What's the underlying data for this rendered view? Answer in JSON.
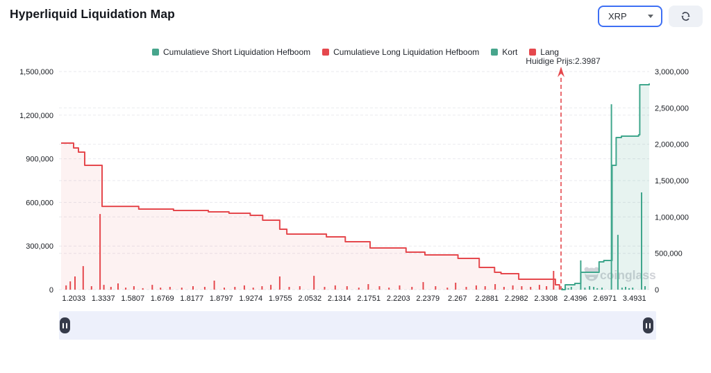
{
  "header": {
    "title": "Hyperliquid Liquidation Map"
  },
  "controls": {
    "symbol": "XRP",
    "symbol_caret_icon": "chevron-down",
    "refresh_icon": "refresh"
  },
  "watermark": {
    "text": "coinglass",
    "logo_icon": "coinglass-bear",
    "color": "#c9ccd2"
  },
  "slider": {
    "left_handle_icon": "pause",
    "right_handle_icon": "pause"
  },
  "chart_data": {
    "type": "area",
    "title": "Hyperliquid Liquidation Map",
    "grid": true,
    "legend_position": "top",
    "legend": [
      {
        "label": "Cumulatieve Short Liquidation Hefboom",
        "color": "#47a58c"
      },
      {
        "label": "Cumulatieve Long Liquidation Hefboom",
        "color": "#e5484d"
      },
      {
        "label": "Kort",
        "color": "#47a58c"
      },
      {
        "label": "Lang",
        "color": "#e5484d"
      }
    ],
    "colors": {
      "grid": "#e9eaee",
      "axis_text": "#16191f",
      "long": "#e5484d",
      "short": "#3fa68c",
      "long_fill": "rgba(229,72,77,0.07)",
      "short_fill": "rgba(71,165,140,0.13)",
      "price_line": "#e5484d",
      "annotation_text": "#2a2e35"
    },
    "x_tick_labels": [
      "1.2033",
      "1.3337",
      "1.5807",
      "1.6769",
      "1.8177",
      "1.8797",
      "1.9274",
      "1.9755",
      "2.0532",
      "2.1314",
      "2.1751",
      "2.2203",
      "2.2379",
      "2.267",
      "2.2881",
      "2.2982",
      "2.3308",
      "2.4396",
      "2.6971",
      "3.4931"
    ],
    "left_axis": {
      "min": 0,
      "max": 1500000,
      "tick_values": [
        0,
        300000,
        600000,
        900000,
        1200000,
        1500000
      ],
      "tick_labels": [
        "0",
        "300,000",
        "600,000",
        "900,000",
        "1,200,000",
        "1,500,000"
      ]
    },
    "right_axis": {
      "min": 0,
      "max": 3000000,
      "tick_values": [
        0,
        500000,
        1000000,
        1500000,
        2000000,
        2500000,
        3000000
      ],
      "tick_labels": [
        "0",
        "500,000",
        "1,000,000",
        "1,500,000",
        "2,000,000",
        "2,500,000",
        "3,000,000"
      ]
    },
    "current_price": {
      "label": "Huidige Prijs:2.3987",
      "value": 2.3987,
      "x_frac": 0.8506
    },
    "series": [
      {
        "name": "Cumulatieve Long Liquidation Hefboom",
        "type": "line-step",
        "axis": "right",
        "color": "#e5484d",
        "fill": "rgba(229,72,77,0.07)",
        "points": [
          [
            0.0035,
            2016000
          ],
          [
            0.0247,
            1949000
          ],
          [
            0.033,
            1892000
          ],
          [
            0.0435,
            1710000
          ],
          [
            0.0729,
            1146000
          ],
          [
            0.135,
            1108000
          ],
          [
            0.194,
            1089000
          ],
          [
            0.253,
            1070000
          ],
          [
            0.288,
            1051000
          ],
          [
            0.324,
            1022000
          ],
          [
            0.345,
            955000
          ],
          [
            0.374,
            831000
          ],
          [
            0.386,
            764000
          ],
          [
            0.453,
            726000
          ],
          [
            0.485,
            659000
          ],
          [
            0.527,
            573000
          ],
          [
            0.588,
            516000
          ],
          [
            0.62,
            478000
          ],
          [
            0.676,
            430000
          ],
          [
            0.712,
            306000
          ],
          [
            0.738,
            239000
          ],
          [
            0.749,
            220000
          ],
          [
            0.779,
            143000
          ],
          [
            0.835,
            143000
          ],
          [
            0.841,
            67000
          ],
          [
            0.848,
            0
          ]
        ]
      },
      {
        "name": "Cumulatieve Short Liquidation Hefboom",
        "type": "line-step",
        "axis": "right",
        "color": "#3fa68c",
        "fill": "rgba(71,165,140,0.13)",
        "points": [
          [
            0.851,
            0
          ],
          [
            0.8576,
            67000
          ],
          [
            0.874,
            86000
          ],
          [
            0.884,
            239000
          ],
          [
            0.915,
            382000
          ],
          [
            0.923,
            401000
          ],
          [
            0.937,
            1710000
          ],
          [
            0.944,
            2092000
          ],
          [
            0.953,
            2111000
          ],
          [
            0.982,
            2130000
          ],
          [
            0.984,
            2818000
          ],
          [
            1.0,
            2837000
          ]
        ]
      },
      {
        "name": "Lang",
        "type": "bar",
        "axis": "left",
        "color": "#e5484d",
        "points": [
          [
            0.012,
            29000
          ],
          [
            0.019,
            57000
          ],
          [
            0.027,
            91000
          ],
          [
            0.041,
            162000
          ],
          [
            0.055,
            24000
          ],
          [
            0.0695,
            520000
          ],
          [
            0.076,
            33000
          ],
          [
            0.088,
            19000
          ],
          [
            0.1,
            43000
          ],
          [
            0.113,
            14000
          ],
          [
            0.127,
            24000
          ],
          [
            0.142,
            10000
          ],
          [
            0.158,
            33000
          ],
          [
            0.172,
            14000
          ],
          [
            0.188,
            19000
          ],
          [
            0.208,
            14000
          ],
          [
            0.227,
            24000
          ],
          [
            0.247,
            19000
          ],
          [
            0.263,
            62000
          ],
          [
            0.28,
            14000
          ],
          [
            0.298,
            19000
          ],
          [
            0.314,
            29000
          ],
          [
            0.329,
            14000
          ],
          [
            0.344,
            24000
          ],
          [
            0.359,
            33000
          ],
          [
            0.374,
            91000
          ],
          [
            0.39,
            19000
          ],
          [
            0.408,
            24000
          ],
          [
            0.432,
            95000
          ],
          [
            0.45,
            19000
          ],
          [
            0.468,
            29000
          ],
          [
            0.488,
            24000
          ],
          [
            0.508,
            14000
          ],
          [
            0.524,
            38000
          ],
          [
            0.543,
            24000
          ],
          [
            0.559,
            14000
          ],
          [
            0.577,
            29000
          ],
          [
            0.598,
            19000
          ],
          [
            0.617,
            52000
          ],
          [
            0.638,
            24000
          ],
          [
            0.658,
            14000
          ],
          [
            0.672,
            48000
          ],
          [
            0.69,
            19000
          ],
          [
            0.707,
            29000
          ],
          [
            0.722,
            24000
          ],
          [
            0.739,
            38000
          ],
          [
            0.754,
            19000
          ],
          [
            0.769,
            29000
          ],
          [
            0.784,
            24000
          ],
          [
            0.799,
            19000
          ],
          [
            0.814,
            33000
          ],
          [
            0.826,
            24000
          ],
          [
            0.838,
            129000
          ]
        ]
      },
      {
        "name": "Kort",
        "type": "bar",
        "axis": "left",
        "color": "#3fa68c",
        "points": [
          [
            0.853,
            10000
          ],
          [
            0.858,
            14000
          ],
          [
            0.863,
            10000
          ],
          [
            0.868,
            19000
          ],
          [
            0.884,
            201000
          ],
          [
            0.891,
            14000
          ],
          [
            0.899,
            24000
          ],
          [
            0.906,
            19000
          ],
          [
            0.912,
            10000
          ],
          [
            0.92,
            14000
          ],
          [
            0.936,
            1275000
          ],
          [
            0.947,
            377000
          ],
          [
            0.954,
            14000
          ],
          [
            0.96,
            19000
          ],
          [
            0.966,
            10000
          ],
          [
            0.972,
            14000
          ],
          [
            0.987,
            669000
          ],
          [
            0.993,
            24000
          ]
        ]
      }
    ]
  }
}
